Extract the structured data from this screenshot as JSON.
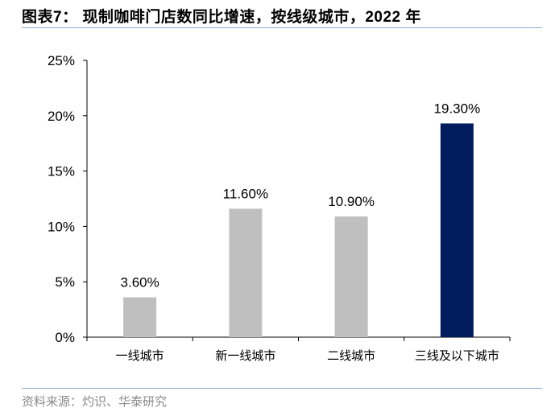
{
  "title": "图表7：  现制咖啡门店数同比增速，按线级城市，2022 年",
  "source": "资料来源：灼识、华泰研究",
  "chart_data": {
    "type": "bar",
    "categories": [
      "一线城市",
      "新一线城市",
      "二线城市",
      "三线及以下城市"
    ],
    "values": [
      3.6,
      11.6,
      10.9,
      19.3
    ],
    "data_labels": [
      "3.60%",
      "11.60%",
      "10.90%",
      "19.30%"
    ],
    "bar_colors": [
      "#bfbfbf",
      "#bfbfbf",
      "#bfbfbf",
      "#001b5e"
    ],
    "ylim": [
      0,
      25
    ],
    "yticks": [
      0,
      5,
      10,
      15,
      20,
      25
    ],
    "ytick_labels": [
      "0%",
      "5%",
      "10%",
      "15%",
      "20%",
      "25%"
    ],
    "grid": false,
    "xlabel": "",
    "ylabel": ""
  }
}
